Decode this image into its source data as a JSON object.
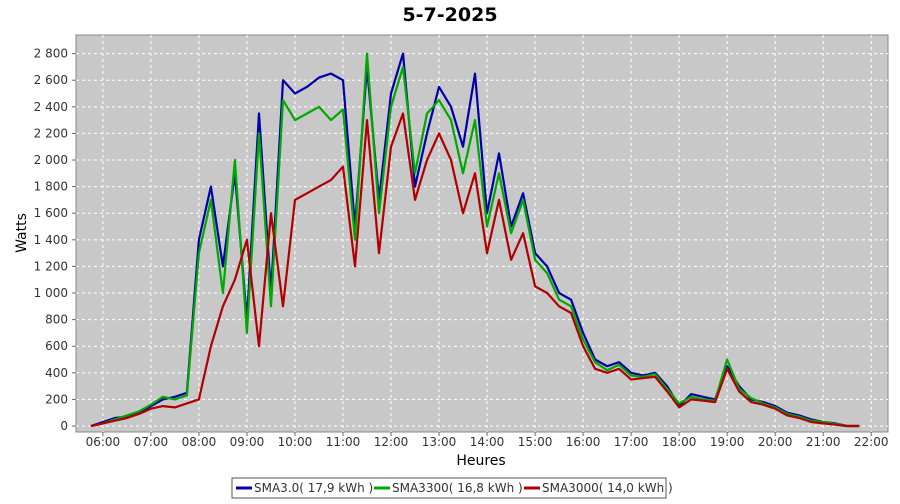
{
  "chart_data": {
    "type": "line",
    "title": "5-7-2025",
    "x_label": "Heures",
    "y_label": "Watts",
    "xlim": [
      5.44,
      22.35
    ],
    "ylim": [
      -45,
      2940
    ],
    "xticks": [
      {
        "value": 6,
        "label": "06:00"
      },
      {
        "value": 7,
        "label": "07:00"
      },
      {
        "value": 8,
        "label": "08:00"
      },
      {
        "value": 9,
        "label": "09:00"
      },
      {
        "value": 10,
        "label": "10:00"
      },
      {
        "value": 11,
        "label": "11:00"
      },
      {
        "value": 12,
        "label": "12:00"
      },
      {
        "value": 13,
        "label": "13:00"
      },
      {
        "value": 14,
        "label": "14:00"
      },
      {
        "value": 15,
        "label": "15:00"
      },
      {
        "value": 16,
        "label": "16:00"
      },
      {
        "value": 17,
        "label": "17:00"
      },
      {
        "value": 18,
        "label": "18:00"
      },
      {
        "value": 19,
        "label": "19:00"
      },
      {
        "value": 20,
        "label": "20:00"
      },
      {
        "value": 21,
        "label": "21:00"
      },
      {
        "value": 22,
        "label": "22:00"
      }
    ],
    "yticks": [
      0,
      200,
      400,
      600,
      800,
      {
        "value": 1000,
        "label": "1 000"
      },
      {
        "value": 1200,
        "label": "1 200"
      },
      {
        "value": 1400,
        "label": "1 400"
      },
      {
        "value": 1600,
        "label": "1 600"
      },
      {
        "value": 1800,
        "label": "1 800"
      },
      {
        "value": 2000,
        "label": "2 000"
      },
      {
        "value": 2200,
        "label": "2 200"
      },
      {
        "value": 2400,
        "label": "2 400"
      },
      {
        "value": 2600,
        "label": "2 600"
      },
      {
        "value": 2800,
        "label": "2 800"
      }
    ],
    "grid": true,
    "x": [
      5.75,
      6,
      6.25,
      6.5,
      6.75,
      7,
      7.25,
      7.5,
      7.75,
      8,
      8.25,
      8.5,
      8.75,
      9,
      9.25,
      9.5,
      9.75,
      10,
      10.25,
      10.5,
      10.75,
      11,
      11.25,
      11.5,
      11.75,
      12,
      12.25,
      12.5,
      12.75,
      13,
      13.25,
      13.5,
      13.75,
      14,
      14.25,
      14.5,
      14.75,
      15,
      15.25,
      15.5,
      15.75,
      16,
      16.25,
      16.5,
      16.75,
      17,
      17.25,
      17.5,
      17.75,
      18,
      18.25,
      18.5,
      18.75,
      19,
      19.25,
      19.5,
      19.75,
      20,
      20.25,
      20.5,
      20.75,
      21,
      21.25,
      21.5,
      21.75
    ],
    "series": [
      {
        "name": "SMA3.0( 17,9 kWh )",
        "color": "#0000a8",
        "values": [
          0,
          30,
          60,
          70,
          100,
          150,
          200,
          220,
          250,
          1400,
          1800,
          1200,
          1900,
          800,
          2350,
          1000,
          2600,
          2500,
          2550,
          2620,
          2650,
          2600,
          1500,
          2700,
          1700,
          2500,
          2800,
          1800,
          2200,
          2550,
          2400,
          2100,
          2650,
          1600,
          2050,
          1500,
          1750,
          1300,
          1200,
          1000,
          950,
          700,
          500,
          450,
          480,
          400,
          380,
          400,
          300,
          150,
          240,
          220,
          200,
          450,
          300,
          200,
          180,
          150,
          100,
          80,
          50,
          30,
          20,
          0,
          0
        ]
      },
      {
        "name": "SMA3300( 16,8 kWh )",
        "color": "#00a800",
        "values": [
          0,
          20,
          50,
          80,
          110,
          160,
          220,
          200,
          230,
          1300,
          1700,
          1000,
          2000,
          700,
          2200,
          900,
          2450,
          2300,
          2350,
          2400,
          2300,
          2380,
          1400,
          2800,
          1600,
          2400,
          2700,
          1900,
          2350,
          2450,
          2300,
          1900,
          2300,
          1500,
          1900,
          1450,
          1700,
          1250,
          1150,
          950,
          900,
          650,
          480,
          420,
          460,
          380,
          370,
          390,
          280,
          170,
          220,
          200,
          190,
          500,
          280,
          210,
          170,
          140,
          90,
          70,
          40,
          30,
          15,
          0,
          0
        ]
      },
      {
        "name": "SMA3000( 14,0 kWh )",
        "color": "#b00000",
        "values": [
          0,
          20,
          40,
          60,
          90,
          130,
          150,
          140,
          170,
          200,
          600,
          900,
          1100,
          1400,
          600,
          1600,
          900,
          1700,
          1750,
          1800,
          1850,
          1950,
          1200,
          2300,
          1300,
          2100,
          2350,
          1700,
          2000,
          2200,
          2000,
          1600,
          1900,
          1300,
          1700,
          1250,
          1450,
          1050,
          1000,
          900,
          850,
          600,
          430,
          400,
          430,
          350,
          360,
          370,
          260,
          140,
          200,
          190,
          180,
          430,
          260,
          180,
          160,
          130,
          80,
          60,
          30,
          20,
          10,
          0,
          0
        ]
      }
    ]
  }
}
